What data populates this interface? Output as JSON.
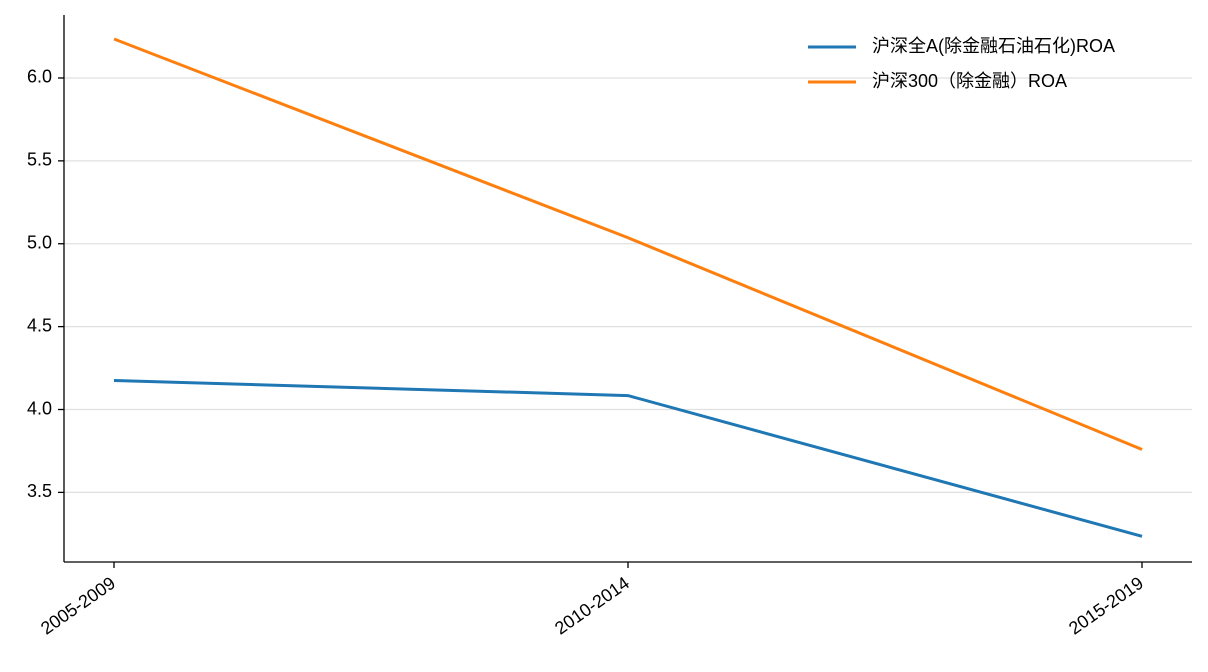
{
  "chart_data": {
    "type": "line",
    "categories": [
      "2005-2009",
      "2010-2014",
      "2015-2019"
    ],
    "series": [
      {
        "name": "沪深全A(除金融石油石化)ROA",
        "color": "#1f77b4",
        "values": [
          4.175,
          4.084,
          3.235
        ]
      },
      {
        "name": "沪深300（除金融）ROA",
        "color": "#ff7f0e",
        "values": [
          6.235,
          5.036,
          3.759
        ]
      }
    ],
    "ylim": [
      3.08,
      6.38
    ],
    "yticks": [
      3.5,
      {
        "value": 4,
        "label": "4.0"
      },
      4.5,
      {
        "value": 5,
        "label": "5.0"
      },
      5.5,
      {
        "value": 6,
        "label": "6.0"
      }
    ],
    "grid": true,
    "legend": "upper right"
  }
}
